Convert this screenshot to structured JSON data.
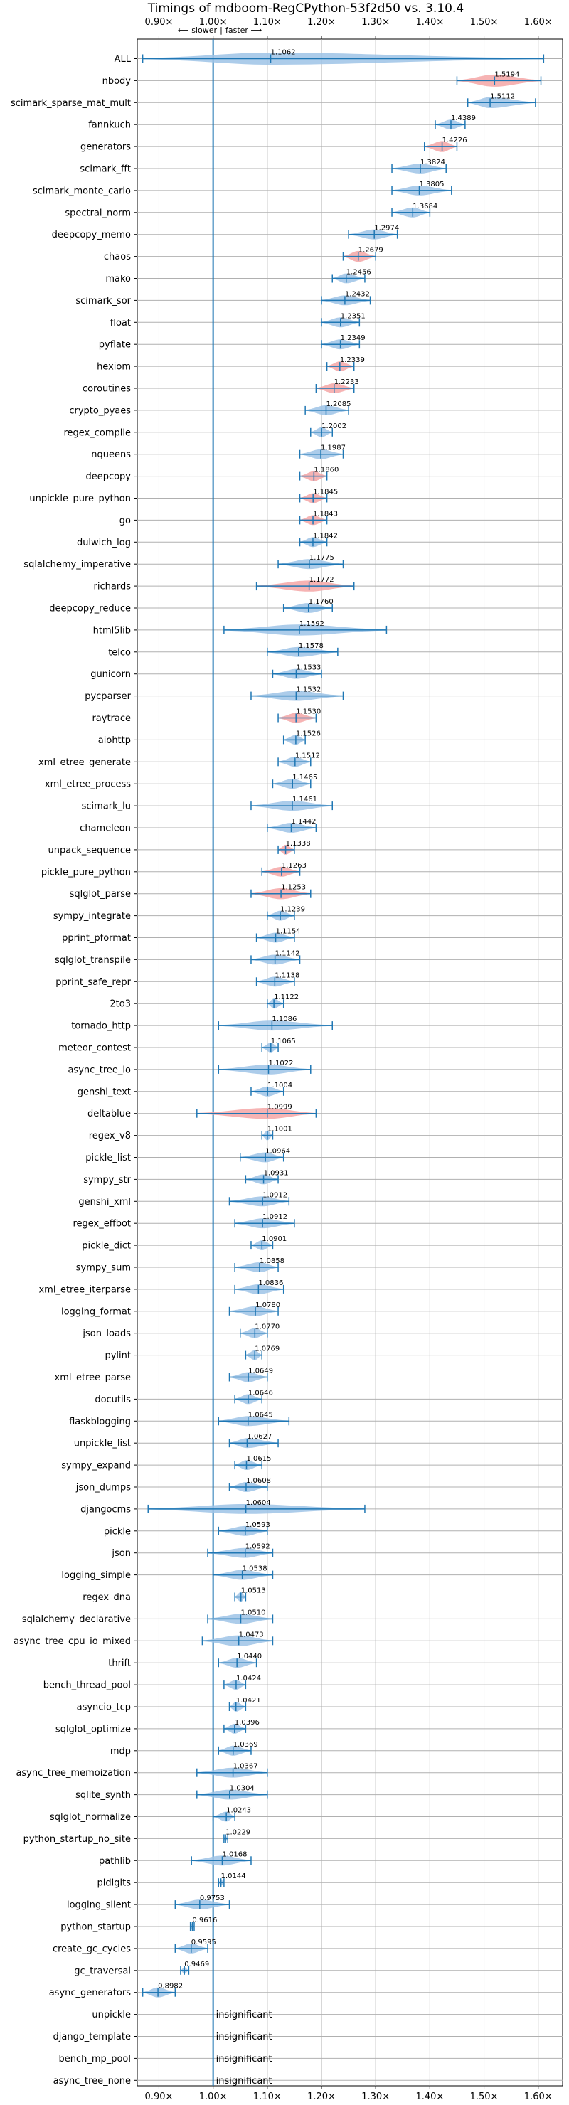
{
  "chart_data": {
    "type": "violin",
    "title": "Timings of mdboom-RegCPython-53f2d50 vs. 3.10.4",
    "xlim": [
      0.86,
      1.645
    ],
    "xticks": [
      0.9,
      1.0,
      1.1,
      1.2,
      1.3,
      1.4,
      1.5,
      1.6
    ],
    "xtick_labels": [
      "0.90×",
      "1.00×",
      "1.10×",
      "1.20×",
      "1.30×",
      "1.40×",
      "1.50×",
      "1.60×"
    ],
    "direction_annotation": {
      "slower": "⟵ slower",
      "faster": "faster ⟶",
      "separator": "|"
    },
    "reference_line": 1.0,
    "grid": true,
    "colors": {
      "normal": "#9dc3e6",
      "regression": "#f4a6a6",
      "stats": "#1f77b4",
      "reference": "#1f77b4"
    },
    "insignificant_label": "insignificant",
    "benchmarks": [
      {
        "name": "ALL",
        "label": "1.1062",
        "mean": 1.1062,
        "min": 0.87,
        "max": 1.61,
        "width": 0.55,
        "color": "normal"
      },
      {
        "name": "nbody",
        "label": "1.5194",
        "mean": 1.5194,
        "min": 1.45,
        "max": 1.605,
        "width": 0.55,
        "color": "regression"
      },
      {
        "name": "scimark_sparse_mat_mult",
        "label": "1.5112",
        "mean": 1.5112,
        "min": 1.47,
        "max": 1.595,
        "width": 0.5,
        "color": "normal"
      },
      {
        "name": "fannkuch",
        "label": "1.4389",
        "mean": 1.4389,
        "min": 1.41,
        "max": 1.465,
        "width": 0.45,
        "color": "normal"
      },
      {
        "name": "generators",
        "label": "1.4226",
        "mean": 1.4226,
        "min": 1.39,
        "max": 1.45,
        "width": 0.5,
        "color": "regression"
      },
      {
        "name": "scimark_fft",
        "label": "1.3824",
        "mean": 1.3824,
        "min": 1.33,
        "max": 1.43,
        "width": 0.45,
        "color": "normal"
      },
      {
        "name": "scimark_monte_carlo",
        "label": "1.3805",
        "mean": 1.3805,
        "min": 1.33,
        "max": 1.44,
        "width": 0.45,
        "color": "normal"
      },
      {
        "name": "spectral_norm",
        "label": "1.3684",
        "mean": 1.3684,
        "min": 1.33,
        "max": 1.4,
        "width": 0.45,
        "color": "normal"
      },
      {
        "name": "deepcopy_memo",
        "label": "1.2974",
        "mean": 1.2974,
        "min": 1.25,
        "max": 1.34,
        "width": 0.45,
        "color": "normal"
      },
      {
        "name": "chaos",
        "label": "1.2679",
        "mean": 1.2679,
        "min": 1.24,
        "max": 1.3,
        "width": 0.5,
        "color": "regression"
      },
      {
        "name": "mako",
        "label": "1.2456",
        "mean": 1.2456,
        "min": 1.22,
        "max": 1.28,
        "width": 0.45,
        "color": "normal"
      },
      {
        "name": "scimark_sor",
        "label": "1.2432",
        "mean": 1.2432,
        "min": 1.2,
        "max": 1.29,
        "width": 0.45,
        "color": "normal"
      },
      {
        "name": "float",
        "label": "1.2351",
        "mean": 1.2351,
        "min": 1.2,
        "max": 1.27,
        "width": 0.45,
        "color": "normal"
      },
      {
        "name": "pyflate",
        "label": "1.2349",
        "mean": 1.2349,
        "min": 1.2,
        "max": 1.27,
        "width": 0.45,
        "color": "normal"
      },
      {
        "name": "hexiom",
        "label": "1.2339",
        "mean": 1.2339,
        "min": 1.21,
        "max": 1.26,
        "width": 0.45,
        "color": "regression"
      },
      {
        "name": "coroutines",
        "label": "1.2233",
        "mean": 1.2233,
        "min": 1.19,
        "max": 1.26,
        "width": 0.45,
        "color": "regression"
      },
      {
        "name": "crypto_pyaes",
        "label": "1.2085",
        "mean": 1.2085,
        "min": 1.17,
        "max": 1.25,
        "width": 0.45,
        "color": "normal"
      },
      {
        "name": "regex_compile",
        "label": "1.2002",
        "mean": 1.2002,
        "min": 1.18,
        "max": 1.22,
        "width": 0.45,
        "color": "normal"
      },
      {
        "name": "nqueens",
        "label": "1.1987",
        "mean": 1.1987,
        "min": 1.16,
        "max": 1.24,
        "width": 0.45,
        "color": "normal"
      },
      {
        "name": "deepcopy",
        "label": "1.1860",
        "mean": 1.186,
        "min": 1.16,
        "max": 1.21,
        "width": 0.45,
        "color": "regression"
      },
      {
        "name": "unpickle_pure_python",
        "label": "1.1845",
        "mean": 1.1845,
        "min": 1.16,
        "max": 1.21,
        "width": 0.45,
        "color": "regression"
      },
      {
        "name": "go",
        "label": "1.1843",
        "mean": 1.1843,
        "min": 1.16,
        "max": 1.21,
        "width": 0.45,
        "color": "regression"
      },
      {
        "name": "dulwich_log",
        "label": "1.1842",
        "mean": 1.1842,
        "min": 1.16,
        "max": 1.21,
        "width": 0.45,
        "color": "normal"
      },
      {
        "name": "sqlalchemy_imperative",
        "label": "1.1775",
        "mean": 1.1775,
        "min": 1.12,
        "max": 1.24,
        "width": 0.45,
        "color": "normal"
      },
      {
        "name": "richards",
        "label": "1.1772",
        "mean": 1.1772,
        "min": 1.08,
        "max": 1.26,
        "width": 0.5,
        "color": "regression"
      },
      {
        "name": "deepcopy_reduce",
        "label": "1.1760",
        "mean": 1.176,
        "min": 1.13,
        "max": 1.22,
        "width": 0.45,
        "color": "normal"
      },
      {
        "name": "html5lib",
        "label": "1.1592",
        "mean": 1.1592,
        "min": 1.02,
        "max": 1.32,
        "width": 0.5,
        "color": "normal"
      },
      {
        "name": "telco",
        "label": "1.1578",
        "mean": 1.1578,
        "min": 1.1,
        "max": 1.23,
        "width": 0.45,
        "color": "normal"
      },
      {
        "name": "gunicorn",
        "label": "1.1533",
        "mean": 1.1533,
        "min": 1.11,
        "max": 1.2,
        "width": 0.45,
        "color": "normal"
      },
      {
        "name": "pycparser",
        "label": "1.1532",
        "mean": 1.1532,
        "min": 1.07,
        "max": 1.24,
        "width": 0.45,
        "color": "normal"
      },
      {
        "name": "raytrace",
        "label": "1.1530",
        "mean": 1.153,
        "min": 1.12,
        "max": 1.19,
        "width": 0.45,
        "color": "regression"
      },
      {
        "name": "aiohttp",
        "label": "1.1526",
        "mean": 1.1526,
        "min": 1.13,
        "max": 1.17,
        "width": 0.45,
        "color": "normal"
      },
      {
        "name": "xml_etree_generate",
        "label": "1.1512",
        "mean": 1.1512,
        "min": 1.12,
        "max": 1.18,
        "width": 0.45,
        "color": "normal"
      },
      {
        "name": "xml_etree_process",
        "label": "1.1465",
        "mean": 1.1465,
        "min": 1.11,
        "max": 1.18,
        "width": 0.45,
        "color": "normal"
      },
      {
        "name": "scimark_lu",
        "label": "1.1461",
        "mean": 1.1461,
        "min": 1.07,
        "max": 1.22,
        "width": 0.45,
        "color": "normal"
      },
      {
        "name": "chameleon",
        "label": "1.1442",
        "mean": 1.1442,
        "min": 1.1,
        "max": 1.19,
        "width": 0.45,
        "color": "normal"
      },
      {
        "name": "unpack_sequence",
        "label": "1.1338",
        "mean": 1.1338,
        "min": 1.12,
        "max": 1.15,
        "width": 0.45,
        "color": "regression"
      },
      {
        "name": "pickle_pure_python",
        "label": "1.1263",
        "mean": 1.1263,
        "min": 1.09,
        "max": 1.16,
        "width": 0.45,
        "color": "regression"
      },
      {
        "name": "sqlglot_parse",
        "label": "1.1253",
        "mean": 1.1253,
        "min": 1.07,
        "max": 1.18,
        "width": 0.5,
        "color": "regression"
      },
      {
        "name": "sympy_integrate",
        "label": "1.1239",
        "mean": 1.1239,
        "min": 1.1,
        "max": 1.15,
        "width": 0.45,
        "color": "normal"
      },
      {
        "name": "pprint_pformat",
        "label": "1.1154",
        "mean": 1.1154,
        "min": 1.08,
        "max": 1.15,
        "width": 0.45,
        "color": "normal"
      },
      {
        "name": "sqlglot_transpile",
        "label": "1.1142",
        "mean": 1.1142,
        "min": 1.07,
        "max": 1.16,
        "width": 0.45,
        "color": "normal"
      },
      {
        "name": "pprint_safe_repr",
        "label": "1.1138",
        "mean": 1.1138,
        "min": 1.08,
        "max": 1.15,
        "width": 0.45,
        "color": "normal"
      },
      {
        "name": "2to3",
        "label": "1.1122",
        "mean": 1.1122,
        "min": 1.1,
        "max": 1.13,
        "width": 0.45,
        "color": "normal"
      },
      {
        "name": "tornado_http",
        "label": "1.1086",
        "mean": 1.1086,
        "min": 1.01,
        "max": 1.22,
        "width": 0.45,
        "color": "normal"
      },
      {
        "name": "meteor_contest",
        "label": "1.1065",
        "mean": 1.1065,
        "min": 1.09,
        "max": 1.12,
        "width": 0.45,
        "color": "normal"
      },
      {
        "name": "async_tree_io",
        "label": "1.1022",
        "mean": 1.1022,
        "min": 1.01,
        "max": 1.18,
        "width": 0.45,
        "color": "normal"
      },
      {
        "name": "genshi_text",
        "label": "1.1004",
        "mean": 1.1004,
        "min": 1.07,
        "max": 1.13,
        "width": 0.45,
        "color": "normal"
      },
      {
        "name": "deltablue",
        "label": "1.0999",
        "mean": 1.0999,
        "min": 0.97,
        "max": 1.19,
        "width": 0.5,
        "color": "regression"
      },
      {
        "name": "regex_v8",
        "label": "1.1001",
        "mean": 1.1001,
        "min": 1.09,
        "max": 1.11,
        "width": 0.45,
        "color": "normal"
      },
      {
        "name": "pickle_list",
        "label": "1.0964",
        "mean": 1.0964,
        "min": 1.05,
        "max": 1.13,
        "width": 0.45,
        "color": "normal"
      },
      {
        "name": "sympy_str",
        "label": "1.0931",
        "mean": 1.0931,
        "min": 1.06,
        "max": 1.12,
        "width": 0.45,
        "color": "normal"
      },
      {
        "name": "genshi_xml",
        "label": "1.0912",
        "mean": 1.0912,
        "min": 1.03,
        "max": 1.14,
        "width": 0.45,
        "color": "normal"
      },
      {
        "name": "regex_effbot",
        "label": "1.0912",
        "mean": 1.0912,
        "min": 1.04,
        "max": 1.15,
        "width": 0.45,
        "color": "normal"
      },
      {
        "name": "pickle_dict",
        "label": "1.0901",
        "mean": 1.0901,
        "min": 1.07,
        "max": 1.11,
        "width": 0.45,
        "color": "normal"
      },
      {
        "name": "sympy_sum",
        "label": "1.0858",
        "mean": 1.0858,
        "min": 1.04,
        "max": 1.12,
        "width": 0.45,
        "color": "normal"
      },
      {
        "name": "xml_etree_iterparse",
        "label": "1.0836",
        "mean": 1.0836,
        "min": 1.04,
        "max": 1.13,
        "width": 0.45,
        "color": "normal"
      },
      {
        "name": "logging_format",
        "label": "1.0780",
        "mean": 1.078,
        "min": 1.03,
        "max": 1.12,
        "width": 0.45,
        "color": "normal"
      },
      {
        "name": "json_loads",
        "label": "1.0770",
        "mean": 1.077,
        "min": 1.05,
        "max": 1.1,
        "width": 0.45,
        "color": "normal"
      },
      {
        "name": "pylint",
        "label": "1.0769",
        "mean": 1.0769,
        "min": 1.06,
        "max": 1.09,
        "width": 0.45,
        "color": "normal"
      },
      {
        "name": "xml_etree_parse",
        "label": "1.0649",
        "mean": 1.0649,
        "min": 1.03,
        "max": 1.1,
        "width": 0.45,
        "color": "normal"
      },
      {
        "name": "docutils",
        "label": "1.0646",
        "mean": 1.0646,
        "min": 1.04,
        "max": 1.09,
        "width": 0.45,
        "color": "normal"
      },
      {
        "name": "flaskblogging",
        "label": "1.0645",
        "mean": 1.0645,
        "min": 1.01,
        "max": 1.14,
        "width": 0.45,
        "color": "normal"
      },
      {
        "name": "unpickle_list",
        "label": "1.0627",
        "mean": 1.0627,
        "min": 1.03,
        "max": 1.12,
        "width": 0.45,
        "color": "normal"
      },
      {
        "name": "sympy_expand",
        "label": "1.0615",
        "mean": 1.0615,
        "min": 1.04,
        "max": 1.09,
        "width": 0.45,
        "color": "normal"
      },
      {
        "name": "json_dumps",
        "label": "1.0608",
        "mean": 1.0608,
        "min": 1.03,
        "max": 1.1,
        "width": 0.45,
        "color": "normal"
      },
      {
        "name": "djangocms",
        "label": "1.0604",
        "mean": 1.0604,
        "min": 0.88,
        "max": 1.28,
        "width": 0.45,
        "color": "normal"
      },
      {
        "name": "pickle",
        "label": "1.0593",
        "mean": 1.0593,
        "min": 1.01,
        "max": 1.1,
        "width": 0.45,
        "color": "normal"
      },
      {
        "name": "json",
        "label": "1.0592",
        "mean": 1.0592,
        "min": 0.99,
        "max": 1.11,
        "width": 0.45,
        "color": "normal"
      },
      {
        "name": "logging_simple",
        "label": "1.0538",
        "mean": 1.0538,
        "min": 1.0,
        "max": 1.11,
        "width": 0.45,
        "color": "normal"
      },
      {
        "name": "regex_dna",
        "label": "1.0513",
        "mean": 1.0513,
        "min": 1.04,
        "max": 1.06,
        "width": 0.45,
        "color": "normal"
      },
      {
        "name": "sqlalchemy_declarative",
        "label": "1.0510",
        "mean": 1.051,
        "min": 0.99,
        "max": 1.11,
        "width": 0.45,
        "color": "normal"
      },
      {
        "name": "async_tree_cpu_io_mixed",
        "label": "1.0473",
        "mean": 1.0473,
        "min": 0.98,
        "max": 1.11,
        "width": 0.5,
        "color": "normal"
      },
      {
        "name": "thrift",
        "label": "1.0440",
        "mean": 1.044,
        "min": 1.01,
        "max": 1.08,
        "width": 0.45,
        "color": "normal"
      },
      {
        "name": "bench_thread_pool",
        "label": "1.0424",
        "mean": 1.0424,
        "min": 1.02,
        "max": 1.06,
        "width": 0.45,
        "color": "normal"
      },
      {
        "name": "asyncio_tcp",
        "label": "1.0421",
        "mean": 1.0421,
        "min": 1.03,
        "max": 1.06,
        "width": 0.45,
        "color": "normal"
      },
      {
        "name": "sqlglot_optimize",
        "label": "1.0396",
        "mean": 1.0396,
        "min": 1.02,
        "max": 1.06,
        "width": 0.45,
        "color": "normal"
      },
      {
        "name": "mdp",
        "label": "1.0369",
        "mean": 1.0369,
        "min": 1.01,
        "max": 1.07,
        "width": 0.45,
        "color": "normal"
      },
      {
        "name": "async_tree_memoization",
        "label": "1.0367",
        "mean": 1.0367,
        "min": 0.97,
        "max": 1.1,
        "width": 0.45,
        "color": "normal"
      },
      {
        "name": "sqlite_synth",
        "label": "1.0304",
        "mean": 1.0304,
        "min": 0.97,
        "max": 1.1,
        "width": 0.45,
        "color": "normal"
      },
      {
        "name": "sqlglot_normalize",
        "label": "1.0243",
        "mean": 1.0243,
        "min": 1.0,
        "max": 1.04,
        "width": 0.45,
        "color": "normal"
      },
      {
        "name": "python_startup_no_site",
        "label": "1.0229",
        "mean": 1.0229,
        "min": 1.02,
        "max": 1.027,
        "width": 0.3,
        "color": "normal"
      },
      {
        "name": "pathlib",
        "label": "1.0168",
        "mean": 1.0168,
        "min": 0.96,
        "max": 1.07,
        "width": 0.45,
        "color": "normal"
      },
      {
        "name": "pidigits",
        "label": "1.0144",
        "mean": 1.0144,
        "min": 1.01,
        "max": 1.02,
        "width": 0.3,
        "color": "normal"
      },
      {
        "name": "logging_silent",
        "label": "0.9753",
        "mean": 0.9753,
        "min": 0.93,
        "max": 1.03,
        "width": 0.45,
        "color": "normal"
      },
      {
        "name": "python_startup",
        "label": "0.9616",
        "mean": 0.9616,
        "min": 0.958,
        "max": 0.965,
        "width": 0.3,
        "color": "normal"
      },
      {
        "name": "create_gc_cycles",
        "label": "0.9595",
        "mean": 0.9595,
        "min": 0.93,
        "max": 0.99,
        "width": 0.45,
        "color": "normal"
      },
      {
        "name": "gc_traversal",
        "label": "0.9469",
        "mean": 0.9469,
        "min": 0.94,
        "max": 0.955,
        "width": 0.3,
        "color": "normal"
      },
      {
        "name": "async_generators",
        "label": "0.8982",
        "mean": 0.8982,
        "min": 0.87,
        "max": 0.93,
        "width": 0.45,
        "color": "normal"
      },
      {
        "name": "unpickle",
        "insignificant": true
      },
      {
        "name": "django_template",
        "insignificant": true
      },
      {
        "name": "bench_mp_pool",
        "insignificant": true
      },
      {
        "name": "async_tree_none",
        "insignificant": true
      }
    ]
  }
}
